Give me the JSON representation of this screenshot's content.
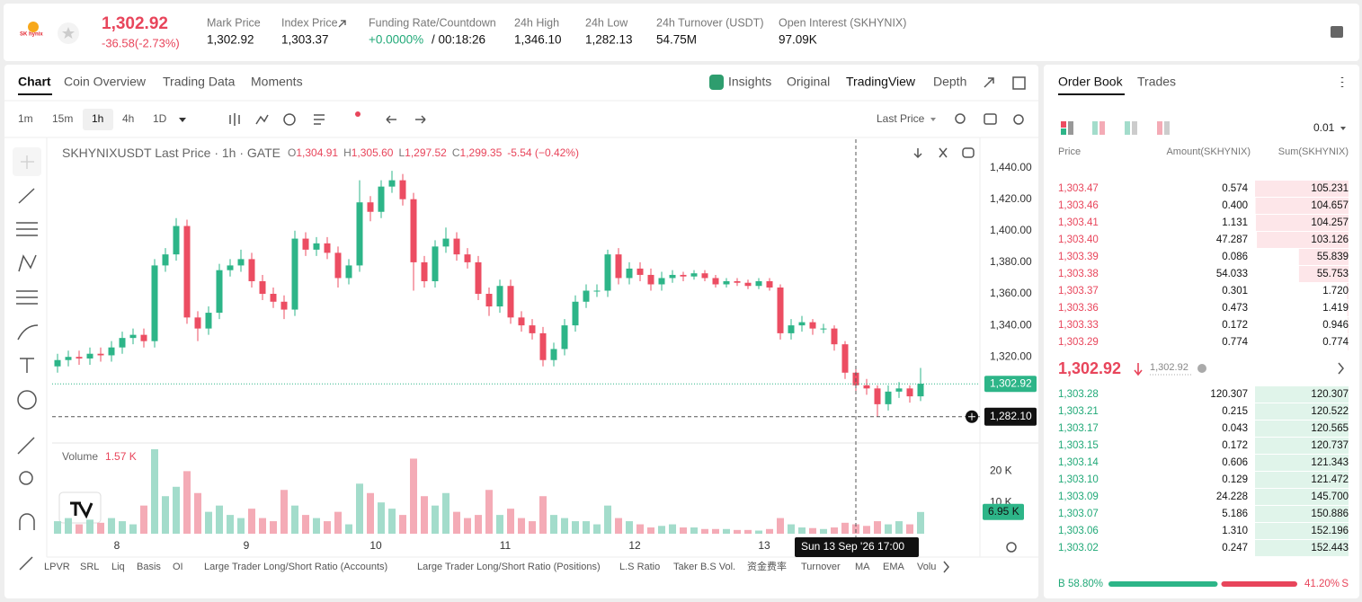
{
  "header": {
    "logo": "SK hynix",
    "last_price": "1,302.92",
    "change": "-36.58(-2.73%)",
    "stats": [
      {
        "label": "Mark Price",
        "value": "1,302.92"
      },
      {
        "label": "Index Price",
        "value": "1,303.37"
      },
      {
        "label": "Funding Rate/Countdown",
        "value": "+0.0000%",
        "extra": "/ 00:18:26"
      },
      {
        "label": "24h High",
        "value": "1,346.10"
      },
      {
        "label": "24h Low",
        "value": "1,282.13"
      },
      {
        "label": "24h Turnover (USDT)",
        "value": "54.75M"
      },
      {
        "label": "Open Interest (SKHYNIX)",
        "value": "97.09K"
      }
    ]
  },
  "chart_panel": {
    "tabs": [
      "Chart",
      "Coin Overview",
      "Trading Data",
      "Moments"
    ],
    "views": [
      "Insights",
      "Original",
      "TradingView",
      "Depth"
    ],
    "intervals": [
      "1m",
      "15m",
      "1h",
      "4h",
      "1D"
    ],
    "price_source": "Last Price",
    "indicators": [
      "LPVR",
      "SRL",
      "Liq",
      "Basis",
      "OI",
      "Large Trader Long/Short Ratio (Accounts)",
      "Large Trader Long/Short Ratio (Positions)",
      "L.S Ratio",
      "Taker B.S Vol.",
      "资金费率",
      "Turnover",
      "MA",
      "EMA",
      "Volu"
    ]
  },
  "chart_data": {
    "type": "candlestick",
    "title": "SKHYNIXUSDT Last Price · 1h · GATE",
    "ohlc_legend": {
      "o_label": "O",
      "o": "1,304.91",
      "h_label": "H",
      "h": "1,305.60",
      "l_label": "L",
      "l": "1,297.52",
      "c_label": "C",
      "c": "1,299.35",
      "change": "-5.54 (−0.42%)"
    },
    "up_color": "#2db588",
    "down_color": "#ec4d62",
    "open": [
      1314,
      1318,
      1320,
      1319,
      1322,
      1321,
      1326,
      1332,
      1334,
      1330,
      1378,
      1385,
      1403,
      1345,
      1338,
      1348,
      1375,
      1378,
      1382,
      1368,
      1360,
      1355,
      1350,
      1395,
      1388,
      1392,
      1386,
      1370,
      1378,
      1418,
      1412,
      1428,
      1432,
      1420,
      1380,
      1368,
      1390,
      1395,
      1385,
      1380,
      1360,
      1352,
      1365,
      1345,
      1340,
      1335,
      1318,
      1325,
      1340,
      1355,
      1362,
      1362,
      1385,
      1370,
      1376,
      1372,
      1366,
      1370,
      1372,
      1371,
      1373,
      1370,
      1366,
      1368,
      1367,
      1365,
      1368,
      1364,
      1335,
      1340,
      1342,
      1338,
      1338,
      1328,
      1310,
      1302,
      1300,
      1290,
      1298,
      1300,
      1295
    ],
    "high": [
      1322,
      1324,
      1324,
      1326,
      1326,
      1330,
      1336,
      1338,
      1338,
      1382,
      1389,
      1408,
      1407,
      1349,
      1352,
      1379,
      1382,
      1388,
      1386,
      1372,
      1364,
      1359,
      1400,
      1399,
      1396,
      1396,
      1390,
      1382,
      1432,
      1422,
      1432,
      1438,
      1436,
      1424,
      1384,
      1394,
      1402,
      1399,
      1389,
      1384,
      1364,
      1369,
      1369,
      1349,
      1344,
      1339,
      1329,
      1344,
      1359,
      1366,
      1366,
      1388,
      1389,
      1380,
      1380,
      1376,
      1374,
      1375,
      1374,
      1375,
      1375,
      1372,
      1370,
      1370,
      1369,
      1370,
      1370,
      1366,
      1344,
      1346,
      1344,
      1341,
      1340,
      1330,
      1314,
      1306,
      1302,
      1302,
      1304,
      1302,
      1313
    ],
    "low": [
      1310,
      1314,
      1315,
      1315,
      1317,
      1317,
      1322,
      1328,
      1326,
      1326,
      1374,
      1381,
      1341,
      1330,
      1334,
      1344,
      1371,
      1374,
      1364,
      1356,
      1351,
      1344,
      1346,
      1384,
      1384,
      1382,
      1364,
      1366,
      1374,
      1406,
      1408,
      1424,
      1416,
      1362,
      1364,
      1364,
      1386,
      1381,
      1376,
      1356,
      1346,
      1348,
      1341,
      1336,
      1331,
      1314,
      1314,
      1321,
      1336,
      1351,
      1358,
      1358,
      1366,
      1366,
      1368,
      1362,
      1362,
      1367,
      1368,
      1369,
      1368,
      1364,
      1364,
      1365,
      1363,
      1363,
      1362,
      1331,
      1331,
      1336,
      1334,
      1335,
      1324,
      1306,
      1298,
      1296,
      1282,
      1286,
      1294,
      1291,
      1292
    ],
    "close": [
      1318,
      1320,
      1319,
      1322,
      1321,
      1326,
      1332,
      1334,
      1330,
      1378,
      1385,
      1403,
      1345,
      1338,
      1348,
      1375,
      1378,
      1382,
      1368,
      1360,
      1355,
      1350,
      1395,
      1388,
      1392,
      1386,
      1370,
      1378,
      1418,
      1412,
      1428,
      1432,
      1420,
      1380,
      1368,
      1390,
      1395,
      1385,
      1380,
      1360,
      1352,
      1365,
      1345,
      1340,
      1335,
      1318,
      1325,
      1340,
      1355,
      1362,
      1362,
      1385,
      1370,
      1376,
      1372,
      1366,
      1370,
      1372,
      1371,
      1373,
      1370,
      1366,
      1368,
      1367,
      1365,
      1368,
      1364,
      1335,
      1340,
      1342,
      1338,
      1338,
      1328,
      1310,
      1302,
      1300,
      1290,
      1298,
      1300,
      1295,
      1303
    ],
    "xlim": [
      0,
      81
    ],
    "xticks": [
      {
        "value": 6,
        "label": "8"
      },
      {
        "value": 18,
        "label": "9"
      },
      {
        "value": 30,
        "label": "10"
      },
      {
        "value": 42,
        "label": "11"
      },
      {
        "value": 54,
        "label": "12"
      },
      {
        "value": 66,
        "label": "13"
      }
    ],
    "ylim": [
      1266,
      1458
    ],
    "yticks": [
      {
        "value": 1320,
        "label": "1,320.00"
      },
      {
        "value": 1340,
        "label": "1,340.00"
      },
      {
        "value": 1360,
        "label": "1,360.00"
      },
      {
        "value": 1380,
        "label": "1,380.00"
      },
      {
        "value": 1400,
        "label": "1,400.00"
      },
      {
        "value": 1420,
        "label": "1,420.00"
      },
      {
        "value": 1440,
        "label": "1,440.00"
      }
    ],
    "price_line": {
      "value": 1302.92,
      "label": "1,302.92"
    },
    "crosshair": {
      "value": 1282.1,
      "label": "1,282.10",
      "time": "Sun 13 Sep '26  17:00"
    },
    "volume": {
      "title": "Volume",
      "legend_value": "1.57 K",
      "badge": "6.95 K",
      "up_color": "#a3dccb",
      "down_color": "#f4abb6",
      "values": [
        4000,
        5000,
        3000,
        4500,
        3500,
        5000,
        4000,
        3000,
        9000,
        27000,
        12000,
        15000,
        20000,
        13000,
        7000,
        9000,
        6000,
        5000,
        8000,
        5000,
        4000,
        14000,
        9000,
        6000,
        5000,
        4000,
        7000,
        3000,
        16000,
        13000,
        10000,
        8000,
        6000,
        24000,
        12000,
        9000,
        13000,
        7000,
        5000,
        6000,
        14000,
        6000,
        8000,
        5000,
        4000,
        12000,
        6000,
        5000,
        4000,
        4000,
        3000,
        9000,
        5000,
        4000,
        3000,
        2000,
        2500,
        3000,
        2000,
        2000,
        1500,
        1500,
        1500,
        1200,
        1200,
        1000,
        1500,
        5000,
        3000,
        2000,
        1800,
        1500,
        2000,
        3500,
        3000,
        2500,
        4000,
        3000,
        4000,
        3000,
        6950
      ],
      "ylim": [
        0,
        27000
      ],
      "yticks": [
        {
          "value": 10000,
          "label": "10 K"
        },
        {
          "value": 20000,
          "label": "20 K"
        }
      ]
    }
  },
  "order_book": {
    "tabs": [
      "Order Book",
      "Trades"
    ],
    "precision": "0.01",
    "headers": [
      "Price",
      "Amount(SKHYNIX)",
      "Sum(SKHYNIX)"
    ],
    "asks": [
      {
        "price": "1,303.47",
        "amount": "0.574",
        "sum": "105.231"
      },
      {
        "price": "1,303.46",
        "amount": "0.400",
        "sum": "104.657"
      },
      {
        "price": "1,303.41",
        "amount": "1.131",
        "sum": "104.257"
      },
      {
        "price": "1,303.40",
        "amount": "47.287",
        "sum": "103.126"
      },
      {
        "price": "1,303.39",
        "amount": "0.086",
        "sum": "55.839"
      },
      {
        "price": "1,303.38",
        "amount": "54.033",
        "sum": "55.753"
      },
      {
        "price": "1,303.37",
        "amount": "0.301",
        "sum": "1.720"
      },
      {
        "price": "1,303.36",
        "amount": "0.473",
        "sum": "1.419"
      },
      {
        "price": "1,303.33",
        "amount": "0.172",
        "sum": "0.946"
      },
      {
        "price": "1,303.29",
        "amount": "0.774",
        "sum": "0.774"
      }
    ],
    "last_price": "1,302.92",
    "mark_price": "1,302.92",
    "bids": [
      {
        "price": "1,303.28",
        "amount": "120.307",
        "sum": "120.307"
      },
      {
        "price": "1,303.21",
        "amount": "0.215",
        "sum": "120.522"
      },
      {
        "price": "1,303.17",
        "amount": "0.043",
        "sum": "120.565"
      },
      {
        "price": "1,303.15",
        "amount": "0.172",
        "sum": "120.737"
      },
      {
        "price": "1,303.14",
        "amount": "0.606",
        "sum": "121.343"
      },
      {
        "price": "1,303.10",
        "amount": "0.129",
        "sum": "121.472"
      },
      {
        "price": "1,303.09",
        "amount": "24.228",
        "sum": "145.700"
      },
      {
        "price": "1,303.07",
        "amount": "5.186",
        "sum": "150.886"
      },
      {
        "price": "1,303.06",
        "amount": "1.310",
        "sum": "152.196"
      },
      {
        "price": "1,303.02",
        "amount": "0.247",
        "sum": "152.443"
      }
    ],
    "buy_label": "B",
    "sell_label": "S",
    "buy_ratio": {
      "value": 58.8,
      "label": "58.80%"
    },
    "sell_ratio": {
      "value": 41.2,
      "label": "41.20%"
    }
  }
}
